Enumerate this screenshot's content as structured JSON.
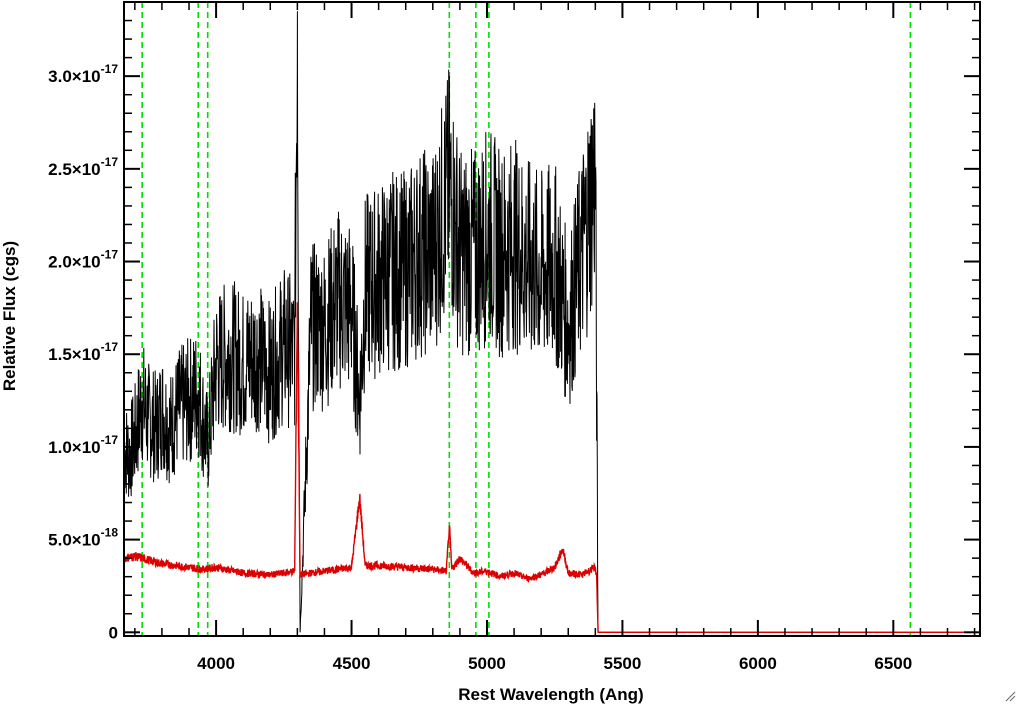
{
  "chart_data": {
    "type": "line",
    "title": "",
    "xlabel": "Rest Wavelength (Ang)",
    "ylabel": "Relative Flux (cgs)",
    "xlim": [
      3660,
      6820
    ],
    "ylim": [
      -2e-19,
      3.4e-17
    ],
    "x_ticks": [
      {
        "value": 4000,
        "label": "4000"
      },
      {
        "value": 4500,
        "label": "4500"
      },
      {
        "value": 5000,
        "label": "5000"
      },
      {
        "value": 5500,
        "label": "5500"
      },
      {
        "value": 6000,
        "label": "6000"
      },
      {
        "value": 6500,
        "label": "6500"
      }
    ],
    "y_ticks": [
      {
        "value": 0,
        "mantissa": "0",
        "exponent": ""
      },
      {
        "value": 5e-18,
        "mantissa": "5.0×10",
        "exponent": "-18"
      },
      {
        "value": 1e-17,
        "mantissa": "1.0×10",
        "exponent": "-17"
      },
      {
        "value": 1.5e-17,
        "mantissa": "1.5×10",
        "exponent": "-17"
      },
      {
        "value": 2e-17,
        "mantissa": "2.0×10",
        "exponent": "-17"
      },
      {
        "value": 2.5e-17,
        "mantissa": "2.5×10",
        "exponent": "-17"
      },
      {
        "value": 3e-17,
        "mantissa": "3.0×10",
        "exponent": "-17"
      }
    ],
    "vertical_lines": [
      3727,
      3934,
      3969,
      4861,
      4959,
      5007,
      6563
    ],
    "colors": {
      "flux": "#000000",
      "error": "#dd0000",
      "lines": "#00dd00",
      "axes": "#000000"
    },
    "series": [
      {
        "key": "flux",
        "color": "#000000",
        "x": [
          3660,
          3680,
          3700,
          3727,
          3750,
          3780,
          3800,
          3830,
          3860,
          3900,
          3934,
          3969,
          4000,
          4050,
          4100,
          4150,
          4200,
          4250,
          4290,
          4300,
          4310,
          4350,
          4400,
          4450,
          4500,
          4530,
          4550,
          4600,
          4650,
          4700,
          4750,
          4800,
          4861,
          4900,
          4959,
          5007,
          5050,
          5100,
          5150,
          5200,
          5250,
          5300,
          5350,
          5380,
          5400,
          5405,
          5410,
          5500,
          5600,
          5800,
          6000,
          6200,
          6400,
          6600,
          6820
        ],
        "y": [
          1e-17,
          9.5e-18,
          1.05e-17,
          1.25e-17,
          1.15e-17,
          1.1e-17,
          1.2e-17,
          1.1e-17,
          1.2e-17,
          1.25e-17,
          1.3e-17,
          1e-17,
          1.45e-17,
          1.5e-17,
          1.45e-17,
          1.5e-17,
          1.4e-17,
          1.55e-17,
          1.5e-17,
          3.35e-17,
          0.0,
          1.65e-17,
          1.65e-17,
          1.8e-17,
          1.75e-17,
          1.25e-17,
          1.85e-17,
          1.9e-17,
          1.95e-17,
          1.95e-17,
          2.05e-17,
          2.05e-17,
          2.4e-17,
          2.05e-17,
          2.05e-17,
          2.15e-17,
          2.05e-17,
          2.1e-17,
          2e-17,
          1.95e-17,
          2e-17,
          1.65e-17,
          2.05e-17,
          2.3e-17,
          2.5e-17,
          1.3e-17,
          0,
          0,
          0,
          0,
          0,
          0,
          0,
          0,
          0
        ]
      },
      {
        "key": "error",
        "color": "#dd0000",
        "x": [
          3660,
          3700,
          3750,
          3800,
          3850,
          3900,
          3950,
          4000,
          4100,
          4200,
          4250,
          4290,
          4300,
          4310,
          4350,
          4400,
          4500,
          4530,
          4550,
          4600,
          4700,
          4800,
          4850,
          4861,
          4870,
          4900,
          4950,
          5000,
          5050,
          5100,
          5150,
          5200,
          5250,
          5280,
          5300,
          5350,
          5400,
          5405,
          5410,
          5500,
          5600,
          5800,
          6000,
          6200,
          6400,
          6600,
          6820
        ],
        "y": [
          4e-18,
          4.1e-18,
          3.9e-18,
          3.7e-18,
          3.6e-18,
          3.5e-18,
          3.4e-18,
          3.5e-18,
          3.2e-18,
          3.1e-18,
          3.2e-18,
          3.3e-18,
          1.78e-17,
          3.1e-18,
          3.2e-18,
          3.3e-18,
          3.5e-18,
          7.3e-18,
          3.6e-18,
          3.6e-18,
          3.5e-18,
          3.4e-18,
          3.3e-18,
          5.7e-18,
          3.4e-18,
          4e-18,
          3.2e-18,
          3.3e-18,
          3e-18,
          3.2e-18,
          2.9e-18,
          3.1e-18,
          3.5e-18,
          4.5e-18,
          3.2e-18,
          3.1e-18,
          3.5e-18,
          3e-18,
          0,
          0,
          0,
          0,
          0,
          0,
          0,
          0,
          0
        ]
      }
    ]
  }
}
